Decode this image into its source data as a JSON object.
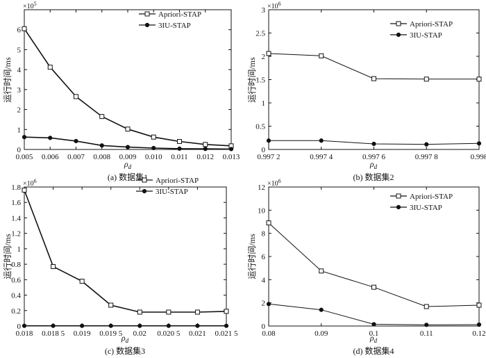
{
  "colors": {
    "ink": "#111111",
    "background": "#ffffff"
  },
  "chart_data": [
    {
      "type": "line",
      "caption": "(a) 数据集1",
      "xlabel": "ρ",
      "xlabel_sub": "d",
      "ylabel": "运行时间/ms",
      "exponent": "×10",
      "exponent_power": "5",
      "xlim": [
        0.005,
        0.013
      ],
      "ylim": [
        0,
        7
      ],
      "x": [
        0.005,
        0.006,
        0.007,
        0.008,
        0.009,
        0.01,
        0.011,
        0.012,
        0.013
      ],
      "xticks": [
        0.005,
        0.006,
        0.007,
        0.008,
        0.009,
        0.01,
        0.011,
        0.012,
        0.013
      ],
      "xtick_labels": [
        "0.005",
        "0.006",
        "0.007",
        "0.008",
        "0.009",
        "0.010",
        "0.011",
        "0.012",
        "0.013"
      ],
      "yticks": [
        0,
        1,
        2,
        3,
        4,
        5,
        6
      ],
      "ytick_labels": [
        "0",
        "1",
        "2",
        "3",
        "4",
        "5",
        "6"
      ],
      "legend_position": "top-right",
      "series": [
        {
          "name": "Apriori-STAP",
          "marker": "square",
          "values": [
            6.05,
            4.12,
            2.65,
            1.65,
            1.02,
            0.62,
            0.4,
            0.25,
            0.18
          ]
        },
        {
          "name": "3IU-STAP",
          "marker": "circle",
          "values": [
            0.62,
            0.58,
            0.42,
            0.2,
            0.12,
            0.07,
            0.04,
            0.03,
            0.02
          ]
        }
      ]
    },
    {
      "type": "line",
      "caption": "(b) 数据集2",
      "xlabel": "ρ",
      "xlabel_sub": "d",
      "ylabel": "运行时间/ms",
      "exponent": "×10",
      "exponent_power": "6",
      "xlim": [
        0.9972,
        0.998
      ],
      "ylim": [
        0,
        3
      ],
      "x": [
        0.9972,
        0.9974,
        0.9976,
        0.9978,
        0.998
      ],
      "xticks": [
        0.9972,
        0.9974,
        0.9976,
        0.9978,
        0.998
      ],
      "xtick_labels": [
        "0.997 2",
        "0.997 4",
        "0.997 6",
        "0.997 8",
        "0.998"
      ],
      "yticks": [
        0,
        0.5,
        1,
        1.5,
        2,
        2.5,
        3
      ],
      "ytick_labels": [
        "0",
        "0.5",
        "1",
        "1.5",
        "2",
        "2.5",
        "3"
      ],
      "legend_position": "top-right",
      "series": [
        {
          "name": "Apriori-STAP",
          "marker": "square",
          "values": [
            2.06,
            2.01,
            1.52,
            1.51,
            1.51
          ]
        },
        {
          "name": "3IU-STAP",
          "marker": "circle",
          "values": [
            0.19,
            0.19,
            0.12,
            0.11,
            0.13
          ]
        }
      ]
    },
    {
      "type": "line",
      "caption": "(c) 数据集3",
      "xlabel": "ρ",
      "xlabel_sub": "d",
      "ylabel": "运行时间/ms",
      "exponent": "×10",
      "exponent_power": "6",
      "xlim": [
        0.018,
        0.0215
      ],
      "ylim": [
        0,
        1.8
      ],
      "x": [
        0.018,
        0.0185,
        0.019,
        0.0195,
        0.02,
        0.0205,
        0.021,
        0.0215
      ],
      "xticks": [
        0.018,
        0.0185,
        0.019,
        0.0195,
        0.02,
        0.0205,
        0.021,
        0.0215
      ],
      "xtick_labels": [
        "0.018",
        "0.018 5",
        "0.019",
        "0.019 5",
        "0.02",
        "0.020 5",
        "0.021",
        "0.021 5"
      ],
      "yticks": [
        0,
        0.2,
        0.4,
        0.6,
        0.8,
        1,
        1.2,
        1.4,
        1.6,
        1.8
      ],
      "ytick_labels": [
        "0",
        "0.2",
        "0.4",
        "0.6",
        "0.8",
        "1",
        "1.2",
        "1.4",
        "1.6",
        "1.8"
      ],
      "legend_position": "top-right",
      "series": [
        {
          "name": "Apriori-STAP",
          "marker": "square",
          "values": [
            1.76,
            0.77,
            0.58,
            0.27,
            0.18,
            0.18,
            0.18,
            0.19
          ]
        },
        {
          "name": "3IU-STAP",
          "marker": "circle",
          "values": [
            0.003,
            0.003,
            0.003,
            0.003,
            0.003,
            0.003,
            0.003,
            0.003
          ]
        }
      ]
    },
    {
      "type": "line",
      "caption": "(d) 数据集4",
      "xlabel": "ρ",
      "xlabel_sub": "d",
      "ylabel": "运行时间/ms",
      "exponent": "×10",
      "exponent_power": "6",
      "xlim": [
        0.08,
        0.12
      ],
      "ylim": [
        0,
        12
      ],
      "x": [
        0.08,
        0.09,
        0.1,
        0.11,
        0.12
      ],
      "xticks": [
        0.08,
        0.09,
        0.1,
        0.11,
        0.12
      ],
      "xtick_labels": [
        "0.08",
        "0.09",
        "0.1",
        "0.11",
        "0.12"
      ],
      "yticks": [
        0,
        2,
        4,
        6,
        8,
        10,
        12
      ],
      "ytick_labels": [
        "0",
        "2",
        "4",
        "6",
        "8",
        "10",
        "12"
      ],
      "legend_position": "top-right",
      "series": [
        {
          "name": "Apriori-STAP",
          "marker": "square",
          "values": [
            8.9,
            4.75,
            3.35,
            1.68,
            1.8
          ]
        },
        {
          "name": "3IU-STAP",
          "marker": "circle",
          "values": [
            1.9,
            1.4,
            0.15,
            0.1,
            0.12
          ]
        }
      ]
    }
  ]
}
